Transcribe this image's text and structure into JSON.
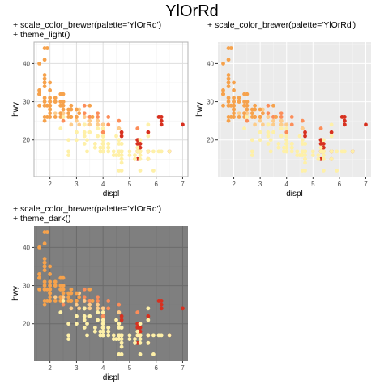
{
  "title": "YlOrRd",
  "panels": [
    {
      "caption1": "+ scale_color_brewer(palette='YlOrRd')",
      "caption2": "+ theme_light()"
    },
    {
      "caption1": "+ scale_color_brewer(palette='YlOrRd')",
      "caption2": ""
    },
    {
      "caption1": "+ scale_color_brewer(palette='YlOrRd')",
      "caption2": "+ theme_dark()"
    }
  ],
  "chart_data": [
    {
      "type": "scatter",
      "theme": "light",
      "xlabel": "displ",
      "ylabel": "hwy",
      "xlim": [
        1.4,
        7.2
      ],
      "ylim": [
        10.4,
        45.6
      ],
      "xticks": [
        2,
        3,
        4,
        5,
        6,
        7
      ],
      "yticks": [
        20,
        30,
        40
      ],
      "grid": true,
      "colors": {
        "panel_bg": "#ffffff",
        "grid_major": "#dedede",
        "grid_minor": "#efefef",
        "border": "#b3b3b3",
        "tick_text": "#4d4d4d"
      }
    },
    {
      "type": "scatter",
      "theme": "grey",
      "xlabel": "displ",
      "ylabel": "hwy",
      "xlim": [
        1.4,
        7.2
      ],
      "ylim": [
        10.4,
        45.6
      ],
      "xticks": [
        2,
        3,
        4,
        5,
        6,
        7
      ],
      "yticks": [
        20,
        30,
        40
      ],
      "grid": true,
      "colors": {
        "panel_bg": "#ebebeb",
        "grid_major": "#ffffff",
        "grid_minor": "#f5f5f5",
        "border": "none",
        "tick_text": "#4d4d4d"
      }
    },
    {
      "type": "scatter",
      "theme": "dark",
      "xlabel": "displ",
      "ylabel": "hwy",
      "xlim": [
        1.4,
        7.2
      ],
      "ylim": [
        10.4,
        45.6
      ],
      "xticks": [
        2,
        3,
        4,
        5,
        6,
        7
      ],
      "yticks": [
        20,
        30,
        40
      ],
      "grid": true,
      "colors": {
        "panel_bg": "#7f7f7f",
        "grid_major": "#6b6b6b",
        "grid_minor": "#757575",
        "border": "none",
        "tick_text": "#4d4d4d"
      }
    }
  ],
  "series": [
    {
      "color": "#d7301f",
      "points": [
        [
          5.3,
          20
        ],
        [
          5.3,
          15
        ],
        [
          5.3,
          20
        ],
        [
          5.7,
          15
        ],
        [
          6.2,
          26
        ],
        [
          6.2,
          25
        ],
        [
          7.0,
          24
        ],
        [
          5.7,
          17
        ],
        [
          6.1,
          26
        ],
        [
          5.3,
          17
        ],
        [
          5.3,
          19
        ],
        [
          5.7,
          17
        ],
        [
          6.5,
          17
        ],
        [
          5.4,
          17
        ],
        [
          5.4,
          19
        ],
        [
          5.4,
          18
        ],
        [
          4.7,
          22
        ],
        [
          4.7,
          21
        ],
        [
          6.2,
          24
        ],
        [
          5.7,
          22
        ]
      ]
    },
    {
      "color": "#fc8d59",
      "points": [
        [
          2.5,
          27
        ],
        [
          2.5,
          25
        ],
        [
          3.5,
          26
        ],
        [
          3.3,
          27
        ],
        [
          3.3,
          26
        ],
        [
          3.8,
          27
        ],
        [
          3.0,
          26
        ],
        [
          3.5,
          26
        ],
        [
          3.8,
          26
        ],
        [
          4.0,
          22
        ],
        [
          2.8,
          26
        ],
        [
          3.1,
          27
        ],
        [
          4.2,
          24
        ],
        [
          3.3,
          29
        ],
        [
          4.6,
          25
        ],
        [
          5.3,
          23
        ],
        [
          4.6,
          23
        ],
        [
          4.0,
          24
        ],
        [
          3.8,
          25
        ],
        [
          4.2,
          26
        ]
      ]
    },
    {
      "color": "#fdcc8a",
      "points": [
        [
          3.1,
          28
        ],
        [
          2.4,
          27
        ],
        [
          2.2,
          27
        ],
        [
          2.4,
          29
        ],
        [
          3.0,
          26
        ],
        [
          3.6,
          26
        ],
        [
          2.7,
          27
        ],
        [
          3.3,
          24
        ],
        [
          4.6,
          23
        ],
        [
          3.5,
          24
        ],
        [
          3.8,
          24
        ],
        [
          2.5,
          27
        ],
        [
          2.8,
          24
        ],
        [
          3.1,
          24
        ],
        [
          2.4,
          29
        ],
        [
          3.3,
          26
        ],
        [
          3.8,
          25
        ],
        [
          4.0,
          24
        ],
        [
          3.0,
          25
        ],
        [
          3.5,
          25
        ]
      ]
    },
    {
      "color": "#f6a24c",
      "points": [
        [
          1.8,
          29
        ],
        [
          1.8,
          29
        ],
        [
          2.0,
          31
        ],
        [
          2.0,
          30
        ],
        [
          2.8,
          26
        ],
        [
          2.8,
          26
        ],
        [
          3.1,
          27
        ],
        [
          1.8,
          26
        ],
        [
          1.8,
          25
        ],
        [
          2.0,
          28
        ],
        [
          2.0,
          28
        ],
        [
          1.8,
          44
        ],
        [
          1.8,
          41
        ],
        [
          1.9,
          44
        ],
        [
          1.9,
          29
        ],
        [
          2.0,
          29
        ],
        [
          2.0,
          28
        ],
        [
          2.5,
          29
        ],
        [
          2.5,
          29
        ],
        [
          1.6,
          33
        ],
        [
          1.6,
          32
        ],
        [
          1.6,
          32
        ],
        [
          1.6,
          29
        ],
        [
          1.6,
          32
        ],
        [
          1.8,
          34
        ],
        [
          1.8,
          36
        ],
        [
          1.8,
          36
        ],
        [
          2.0,
          29
        ],
        [
          2.4,
          26
        ],
        [
          2.4,
          27
        ],
        [
          2.5,
          30
        ],
        [
          2.2,
          31
        ],
        [
          1.8,
          35
        ],
        [
          1.8,
          37
        ],
        [
          1.8,
          35
        ],
        [
          2.0,
          29
        ],
        [
          2.0,
          26
        ],
        [
          2.0,
          29
        ],
        [
          2.8,
          29
        ],
        [
          1.9,
          29
        ],
        [
          2.0,
          29
        ],
        [
          2.5,
          30
        ],
        [
          2.7,
          27
        ],
        [
          2.2,
          26
        ],
        [
          2.4,
          30
        ],
        [
          2.4,
          27
        ],
        [
          3.0,
          28
        ],
        [
          3.0,
          26
        ],
        [
          2.5,
          30
        ],
        [
          2.5,
          26
        ],
        [
          2.7,
          26
        ],
        [
          2.0,
          26
        ],
        [
          2.5,
          28
        ],
        [
          2.8,
          28
        ],
        [
          3.6,
          26
        ],
        [
          3.5,
          29
        ],
        [
          2.4,
          29
        ],
        [
          2.0,
          30
        ],
        [
          2.0,
          27
        ],
        [
          2.5,
          32
        ],
        [
          1.8,
          31
        ],
        [
          2.2,
          30
        ],
        [
          2.4,
          32
        ],
        [
          3.0,
          26
        ],
        [
          1.9,
          26
        ],
        [
          2.7,
          28
        ],
        [
          2.0,
          33
        ],
        [
          1.8,
          30
        ],
        [
          1.6,
          40
        ],
        [
          2.0,
          35
        ]
      ]
    },
    {
      "color": "#fef0a8",
      "points": [
        [
          4.2,
          18
        ],
        [
          4.4,
          16
        ],
        [
          4.6,
          17
        ],
        [
          4.6,
          16
        ],
        [
          5.4,
          16
        ],
        [
          5.4,
          15
        ],
        [
          5.3,
          18
        ],
        [
          5.4,
          20
        ],
        [
          4.7,
          17
        ],
        [
          4.7,
          15
        ],
        [
          4.7,
          15
        ],
        [
          5.7,
          15
        ],
        [
          5.9,
          17
        ],
        [
          4.7,
          19
        ],
        [
          4.7,
          14
        ],
        [
          5.2,
          15
        ],
        [
          5.2,
          15
        ],
        [
          3.9,
          17
        ],
        [
          4.7,
          17
        ],
        [
          4.7,
          16
        ],
        [
          4.7,
          17
        ],
        [
          5.2,
          16
        ],
        [
          5.7,
          15
        ],
        [
          5.9,
          12
        ],
        [
          4.6,
          12
        ],
        [
          5.4,
          12
        ],
        [
          5.4,
          17
        ],
        [
          4.0,
          17
        ],
        [
          4.0,
          19
        ],
        [
          4.0,
          17
        ],
        [
          4.0,
          19
        ],
        [
          4.6,
          17
        ],
        [
          5.0,
          16
        ],
        [
          4.2,
          18
        ],
        [
          4.2,
          17
        ],
        [
          4.6,
          19
        ],
        [
          4.6,
          17
        ],
        [
          4.6,
          17
        ],
        [
          5.4,
          17
        ],
        [
          5.4,
          17
        ],
        [
          4.0,
          20
        ],
        [
          4.7,
          17
        ],
        [
          4.7,
          15
        ],
        [
          4.7,
          17
        ],
        [
          5.7,
          17
        ],
        [
          6.1,
          17
        ],
        [
          4.0,
          19
        ],
        [
          4.2,
          19
        ],
        [
          4.4,
          17
        ],
        [
          4.6,
          17
        ],
        [
          5.4,
          17
        ],
        [
          4.0,
          17
        ],
        [
          4.0,
          19
        ],
        [
          4.6,
          17
        ],
        [
          5.0,
          17
        ],
        [
          5.3,
          17
        ],
        [
          5.7,
          17
        ],
        [
          6.5,
          17
        ],
        [
          2.4,
          23
        ],
        [
          3.0,
          22
        ],
        [
          3.3,
          24
        ],
        [
          3.3,
          22
        ],
        [
          3.3,
          21
        ],
        [
          3.3,
          24
        ],
        [
          3.8,
          23
        ],
        [
          3.8,
          21
        ],
        [
          4.0,
          23
        ],
        [
          3.7,
          19
        ],
        [
          3.7,
          18
        ],
        [
          3.9,
          17
        ],
        [
          3.9,
          18
        ],
        [
          4.7,
          17
        ],
        [
          4.7,
          19
        ],
        [
          3.0,
          22
        ],
        [
          3.7,
          18
        ],
        [
          4.0,
          20
        ],
        [
          4.0,
          19
        ],
        [
          2.7,
          20
        ],
        [
          2.7,
          17
        ],
        [
          2.7,
          16
        ],
        [
          3.4,
          17
        ],
        [
          3.4,
          20
        ],
        [
          4.0,
          19
        ],
        [
          4.7,
          17
        ],
        [
          6.2,
          17
        ],
        [
          5.7,
          21
        ],
        [
          4.6,
          17
        ],
        [
          4.6,
          20
        ],
        [
          3.5,
          22
        ],
        [
          4.0,
          21
        ],
        [
          4.7,
          12
        ],
        [
          2.5,
          26
        ],
        [
          3.8,
          23
        ],
        [
          3.0,
          20
        ],
        [
          3.3,
          19
        ],
        [
          5.7,
          24
        ],
        [
          4.0,
          18
        ],
        [
          4.2,
          19
        ],
        [
          4.5,
          16
        ],
        [
          4.5,
          21
        ]
      ]
    }
  ]
}
